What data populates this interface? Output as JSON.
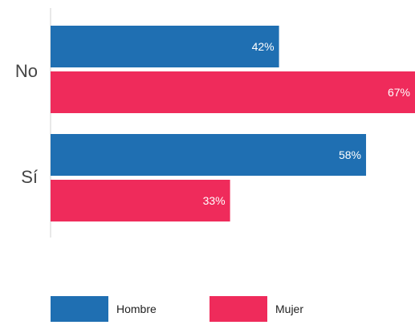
{
  "chart_data": {
    "type": "bar",
    "orientation": "horizontal",
    "categories": [
      "No",
      "Sí"
    ],
    "series": [
      {
        "name": "Hombre",
        "color": "#1F6FB2",
        "values": [
          42,
          58
        ],
        "labels": [
          "42%",
          "58%"
        ]
      },
      {
        "name": "Mujer",
        "color": "#EF2B5B",
        "values": [
          67,
          33
        ],
        "labels": [
          "67%",
          "33%"
        ]
      }
    ],
    "xlim": [
      0,
      67
    ],
    "title": "",
    "xlabel": "",
    "ylabel": "",
    "grid": false,
    "legend_position": "bottom"
  }
}
